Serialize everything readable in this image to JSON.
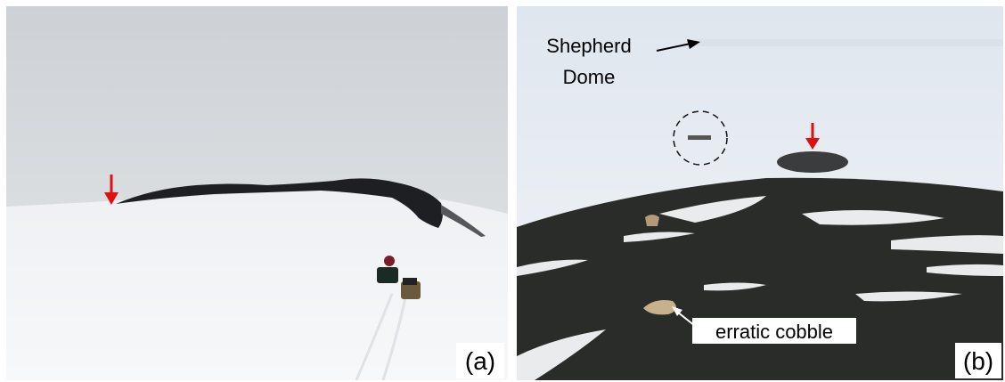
{
  "panels": [
    {
      "label": "(a)"
    },
    {
      "label": "(b)",
      "annotations": [
        {
          "lines": [
            "Shepherd",
            "Dome"
          ]
        },
        {
          "lines": [
            "erratic cobble"
          ]
        }
      ]
    }
  ]
}
